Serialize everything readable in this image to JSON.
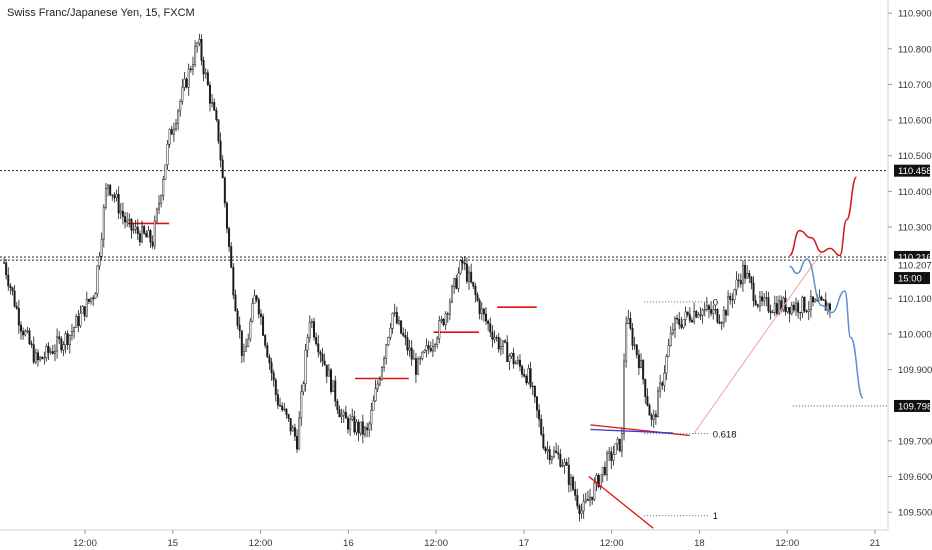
{
  "chart_data": {
    "type": "candlestick",
    "title": "Swiss Franc/Japanese Yen, 15, FXCM",
    "x_ticks": [
      "12:00",
      "15",
      "12:00",
      "16",
      "12:00",
      "17",
      "12:00",
      "18",
      "12:00",
      "21"
    ],
    "y_ticks": [
      "110.900",
      "110.800",
      "110.700",
      "110.600",
      "110.500",
      "110.400",
      "110.300",
      "110.100",
      "110.000",
      "109.900",
      "109.700",
      "109.600",
      "109.500"
    ],
    "ylim": [
      109.45,
      110.92
    ],
    "price_tags": [
      {
        "label": "110.458",
        "value": 110.458,
        "style": "dark"
      },
      {
        "label": "110.216",
        "value": 110.216,
        "style": "dark"
      },
      {
        "label": "110.207",
        "value": 110.207,
        "style": "plain"
      },
      {
        "label": "15:00",
        "value": 110.168,
        "style": "dark"
      },
      {
        "label": "109.798",
        "value": 109.798,
        "style": "dark"
      }
    ],
    "horizontal_lines": [
      {
        "value": 110.458
      },
      {
        "value": 110.216
      },
      {
        "value": 110.207
      }
    ],
    "fib_levels": [
      {
        "label": "0",
        "value": 110.09
      },
      {
        "label": "0.618",
        "value": 109.72
      },
      {
        "label": "1",
        "value": 109.49
      }
    ],
    "colors": {
      "candle": "#1a1a1a",
      "support": "#e01010",
      "projection_up": "#d01818",
      "projection_down": "#5b8fd0",
      "trendline": "#f0a0a0",
      "wedge_top": "#3a3acf"
    },
    "key_points": [
      {
        "pos": 0.0,
        "price": 110.2
      },
      {
        "pos": 0.02,
        "price": 110.03
      },
      {
        "pos": 0.04,
        "price": 109.92
      },
      {
        "pos": 0.08,
        "price": 110.0
      },
      {
        "pos": 0.11,
        "price": 110.12
      },
      {
        "pos": 0.125,
        "price": 110.43
      },
      {
        "pos": 0.15,
        "price": 110.3
      },
      {
        "pos": 0.18,
        "price": 110.26
      },
      {
        "pos": 0.2,
        "price": 110.55
      },
      {
        "pos": 0.235,
        "price": 110.82
      },
      {
        "pos": 0.26,
        "price": 110.55
      },
      {
        "pos": 0.275,
        "price": 110.18
      },
      {
        "pos": 0.29,
        "price": 109.92
      },
      {
        "pos": 0.305,
        "price": 110.12
      },
      {
        "pos": 0.33,
        "price": 109.82
      },
      {
        "pos": 0.355,
        "price": 109.7
      },
      {
        "pos": 0.37,
        "price": 110.05
      },
      {
        "pos": 0.41,
        "price": 109.76
      },
      {
        "pos": 0.44,
        "price": 109.72
      },
      {
        "pos": 0.47,
        "price": 110.06
      },
      {
        "pos": 0.5,
        "price": 109.9
      },
      {
        "pos": 0.53,
        "price": 110.03
      },
      {
        "pos": 0.555,
        "price": 110.2
      },
      {
        "pos": 0.58,
        "price": 110.05
      },
      {
        "pos": 0.6,
        "price": 109.97
      },
      {
        "pos": 0.635,
        "price": 109.88
      },
      {
        "pos": 0.655,
        "price": 109.68
      },
      {
        "pos": 0.675,
        "price": 109.65
      },
      {
        "pos": 0.7,
        "price": 109.5
      },
      {
        "pos": 0.73,
        "price": 109.64
      },
      {
        "pos": 0.748,
        "price": 109.7
      },
      {
        "pos": 0.752,
        "price": 110.05
      },
      {
        "pos": 0.77,
        "price": 109.92
      },
      {
        "pos": 0.785,
        "price": 109.74
      },
      {
        "pos": 0.81,
        "price": 110.02
      },
      {
        "pos": 0.84,
        "price": 110.07
      },
      {
        "pos": 0.87,
        "price": 110.05
      },
      {
        "pos": 0.895,
        "price": 110.18
      },
      {
        "pos": 0.915,
        "price": 110.08
      }
    ]
  }
}
